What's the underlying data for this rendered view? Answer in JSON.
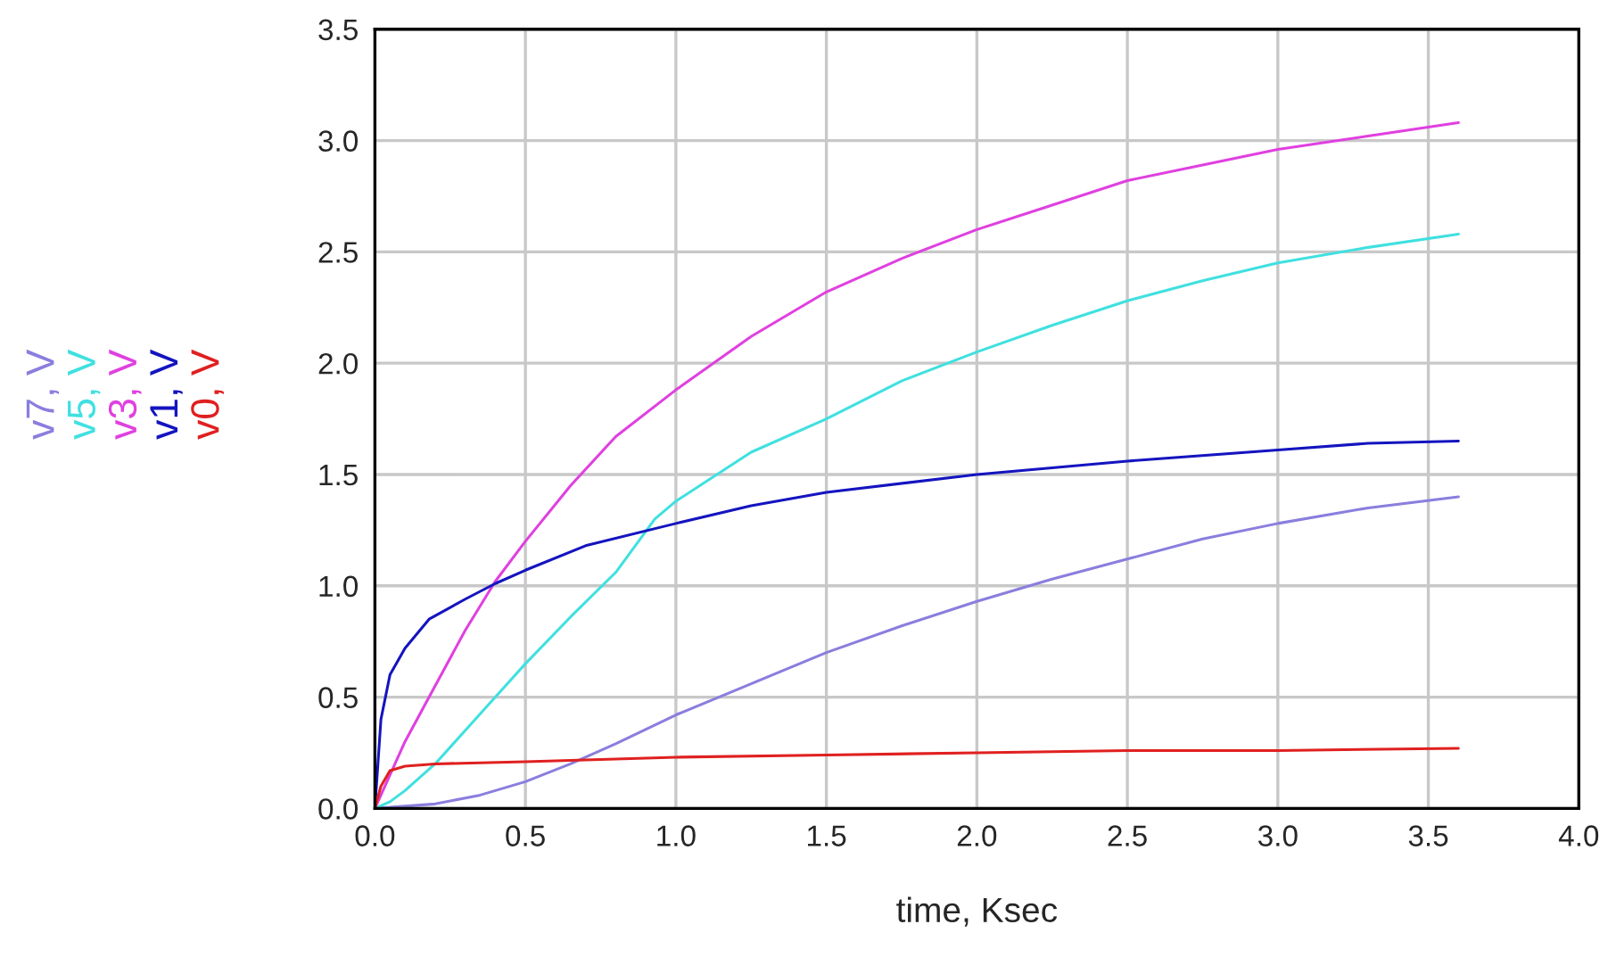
{
  "chart_data": {
    "type": "line",
    "xlabel": "time, Ksec",
    "xlim": [
      0,
      4.0
    ],
    "xticks": [
      {
        "value": 0,
        "label": "0.0"
      },
      0.5,
      {
        "value": 1,
        "label": "1.0"
      },
      1.5,
      {
        "value": 2,
        "label": "2.0"
      },
      2.5,
      {
        "value": 3,
        "label": "3.0"
      },
      3.5,
      {
        "value": 4,
        "label": "4.0"
      }
    ],
    "ylim": [
      0,
      3.5
    ],
    "yticks": [
      {
        "value": 0,
        "label": "0.0"
      },
      0.5,
      {
        "value": 1,
        "label": "1.0"
      },
      1.5,
      {
        "value": 2,
        "label": "2.0"
      },
      2.5,
      {
        "value": 3,
        "label": "3.0"
      },
      3.5
    ],
    "grid": true,
    "marker": "none",
    "line_style": "solid",
    "series": [
      {
        "name": "v7, V",
        "color": "#8a7ede",
        "x": [
          0,
          0.1,
          0.2,
          0.35,
          0.5,
          0.65,
          0.8,
          1.0,
          1.25,
          1.5,
          1.75,
          2.0,
          2.25,
          2.5,
          2.75,
          3.0,
          3.3,
          3.6
        ],
        "values": [
          0,
          0.01,
          0.02,
          0.06,
          0.12,
          0.2,
          0.29,
          0.42,
          0.56,
          0.7,
          0.82,
          0.93,
          1.03,
          1.12,
          1.21,
          1.28,
          1.35,
          1.4
        ]
      },
      {
        "name": "v5, V",
        "color": "#40e0e0",
        "x": [
          0,
          0.05,
          0.1,
          0.2,
          0.3,
          0.4,
          0.5,
          0.65,
          0.8,
          0.93,
          1.0,
          1.25,
          1.5,
          1.75,
          2.0,
          2.25,
          2.5,
          2.75,
          3.0,
          3.3,
          3.6
        ],
        "values": [
          0,
          0.03,
          0.08,
          0.2,
          0.35,
          0.5,
          0.65,
          0.86,
          1.06,
          1.3,
          1.38,
          1.6,
          1.75,
          1.92,
          2.05,
          2.17,
          2.28,
          2.37,
          2.45,
          2.52,
          2.58
        ]
      },
      {
        "name": "v3, V",
        "color": "#e040e0",
        "x": [
          0,
          0.05,
          0.1,
          0.2,
          0.3,
          0.4,
          0.5,
          0.65,
          0.8,
          1.0,
          1.25,
          1.5,
          1.75,
          2.0,
          2.25,
          2.5,
          2.75,
          3.0,
          3.3,
          3.6
        ],
        "values": [
          0,
          0.15,
          0.3,
          0.55,
          0.8,
          1.02,
          1.2,
          1.45,
          1.67,
          1.88,
          2.12,
          2.32,
          2.47,
          2.6,
          2.71,
          2.82,
          2.89,
          2.96,
          3.02,
          3.08
        ]
      },
      {
        "name": "v1, V",
        "color": "#1414c0",
        "x": [
          0,
          0.02,
          0.05,
          0.1,
          0.18,
          0.3,
          0.4,
          0.5,
          0.7,
          1.0,
          1.25,
          1.5,
          2.0,
          2.5,
          3.0,
          3.3,
          3.6
        ],
        "values": [
          0,
          0.4,
          0.6,
          0.72,
          0.85,
          0.94,
          1.01,
          1.07,
          1.18,
          1.28,
          1.36,
          1.42,
          1.5,
          1.56,
          1.61,
          1.64,
          1.65
        ]
      },
      {
        "name": "v0, V",
        "color": "#e02020",
        "x": [
          0,
          0.02,
          0.05,
          0.1,
          0.2,
          0.5,
          1.0,
          1.5,
          2.0,
          2.5,
          3.0,
          3.6
        ],
        "values": [
          0,
          0.1,
          0.17,
          0.19,
          0.2,
          0.21,
          0.23,
          0.24,
          0.25,
          0.26,
          0.26,
          0.27
        ]
      }
    ]
  }
}
